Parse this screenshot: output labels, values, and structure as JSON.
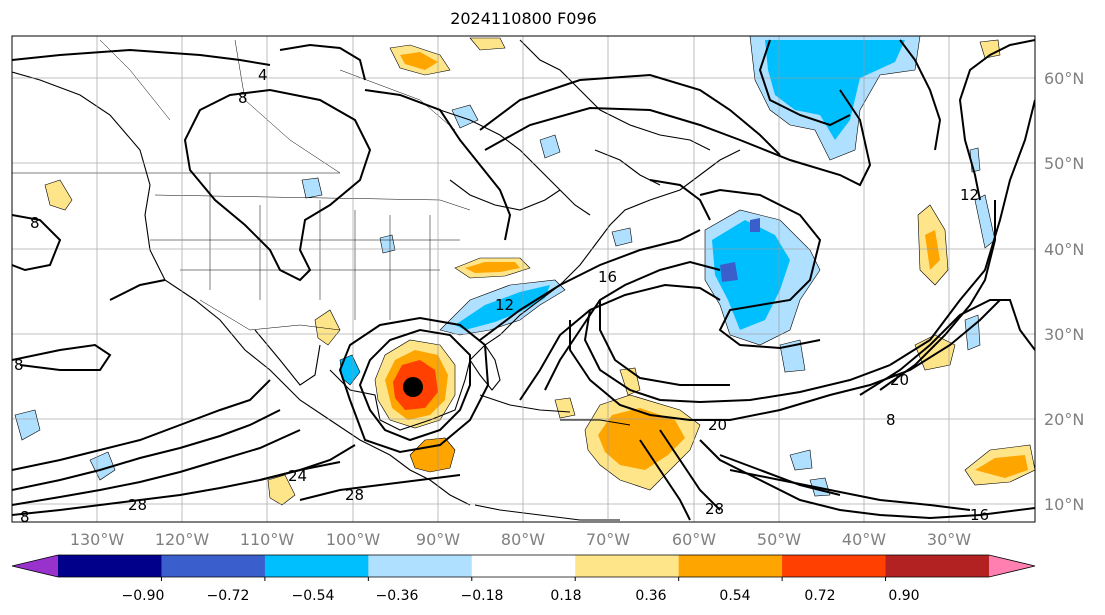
{
  "title": "2024110800 F096",
  "map": {
    "projection": "cylindrical",
    "lon_range": [
      -138,
      -18
    ],
    "lat_range": [
      8,
      65
    ],
    "lat_labels": [
      "60°N",
      "50°N",
      "40°N",
      "30°N",
      "20°N",
      "10°N"
    ],
    "lon_labels": [
      "130°W",
      "120°W",
      "110°W",
      "100°W",
      "90°W",
      "80°W",
      "70°W",
      "60°W",
      "50°W",
      "40°W",
      "30°W"
    ],
    "contour_labels": [
      "4",
      "8",
      "8",
      "8",
      "8",
      "12",
      "16",
      "20",
      "20",
      "24",
      "28",
      "28",
      "28",
      "16",
      "8",
      "12"
    ],
    "storm_marker": {
      "lon": -93,
      "lat": 23.5
    }
  },
  "colorbar": {
    "ticks": [
      "−0.90",
      "−0.72",
      "−0.54",
      "−0.36",
      "−0.18",
      "0.18",
      "0.36",
      "0.54",
      "0.72",
      "0.90"
    ],
    "colors": [
      "#9932cc",
      "#00008b",
      "#3a5fcd",
      "#00bfff",
      "#b0e0ff",
      "#ffffff",
      "#ffe58a",
      "#ffa500",
      "#ff4000",
      "#b22222",
      "#ff80b0"
    ],
    "extend": "both"
  }
}
